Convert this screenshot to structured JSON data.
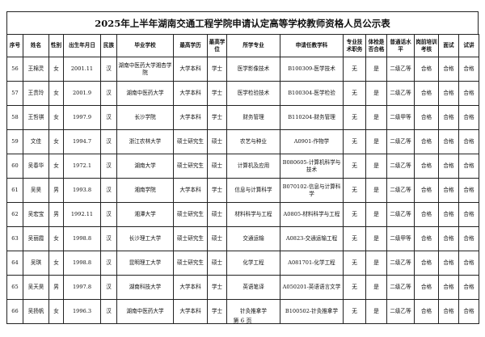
{
  "title": "2025年上半年湖南交通工程学院申请认定高等学校教师资格人员公示表",
  "table": {
    "columns": [
      "序号",
      "姓名",
      "性别",
      "出生年月日",
      "民族",
      "毕业学校",
      "最高学历",
      "最高学位",
      "所学专业",
      "申请任教学科",
      "专业技术职务",
      "体检是否合格",
      "普通话水平",
      "岗前培训考核",
      "面试",
      "试讲"
    ],
    "rows": [
      [
        "56",
        "王棉灵",
        "女",
        "2001.11",
        "汉",
        "湖南中医药大学湘杏学院",
        "大学本科",
        "学士",
        "医学影像技术",
        "B100309-医学技术",
        "无",
        "是",
        "二级乙等",
        "合格",
        "合格",
        "合格"
      ],
      [
        "57",
        "王贵玲",
        "女",
        "2001.9",
        "汉",
        "湖南中医药大学",
        "大学本科",
        "学士",
        "医学检验技术",
        "B100304-医学检验",
        "无",
        "是",
        "二级乙等",
        "合格",
        "合格",
        "合格"
      ],
      [
        "58",
        "王哲祺",
        "女",
        "1997.9",
        "汉",
        "长沙学院",
        "大学本科",
        "学士",
        "财务管理",
        "B110204-财务管理",
        "无",
        "是",
        "二级甲等",
        "合格",
        "合格",
        "合格"
      ],
      [
        "59",
        "文佳",
        "女",
        "1994.7",
        "汉",
        "浙江农林大学",
        "硕士研究生",
        "硕士",
        "农艺与种业",
        "A0901-作物学",
        "无",
        "是",
        "二级乙等",
        "合格",
        "合格",
        "合格"
      ],
      [
        "60",
        "吴春华",
        "女",
        "1972.1",
        "汉",
        "湖南大学",
        "硕士研究生",
        "硕士",
        "计算机及应用",
        "B080605-计算机科学与技术",
        "无",
        "是",
        "二级乙等",
        "合格",
        "合格",
        "合格"
      ],
      [
        "61",
        "吴昊",
        "男",
        "1993.8",
        "汉",
        "湘南学院",
        "大学本科",
        "学士",
        "信息与计算科学",
        "B070102-信息与计算科学",
        "无",
        "是",
        "二级乙等",
        "合格",
        "合格",
        "合格"
      ],
      [
        "62",
        "吴宏宝",
        "男",
        "1992.11",
        "汉",
        "湘潭大学",
        "硕士研究生",
        "硕士",
        "材料科学与工程",
        "A0805-材料科学与工程",
        "无",
        "是",
        "二级乙等",
        "合格",
        "合格",
        "合格"
      ],
      [
        "63",
        "吴丽霞",
        "女",
        "1998.8",
        "汉",
        "长沙理工大学",
        "硕士研究生",
        "硕士",
        "交通运输",
        "A0823-交通运输工程",
        "无",
        "是",
        "二级甲等",
        "合格",
        "合格",
        "合格"
      ],
      [
        "64",
        "吴琪",
        "女",
        "1998.8",
        "汉",
        "昆明理工大学",
        "硕士研究生",
        "硕士",
        "化学工程",
        "A081701-化学工程",
        "无",
        "是",
        "二级乙等",
        "合格",
        "合格",
        "合格"
      ],
      [
        "65",
        "吴天昊",
        "男",
        "1997.8",
        "汉",
        "湖南科技大学",
        "大学本科",
        "学士",
        "英语笔译",
        "A050201-英语语言文学",
        "无",
        "是",
        "二级乙等",
        "合格",
        "合格",
        "合格"
      ],
      [
        "66",
        "吴扬帆",
        "女",
        "1996.3",
        "汉",
        "湖南中医药大学",
        "大学本科",
        "学士",
        "针灸推拿学",
        "B100502-针灸推拿学",
        "无",
        "是",
        "二级乙等",
        "合格",
        "合格",
        "合格"
      ]
    ]
  },
  "footer": "第 6 页"
}
